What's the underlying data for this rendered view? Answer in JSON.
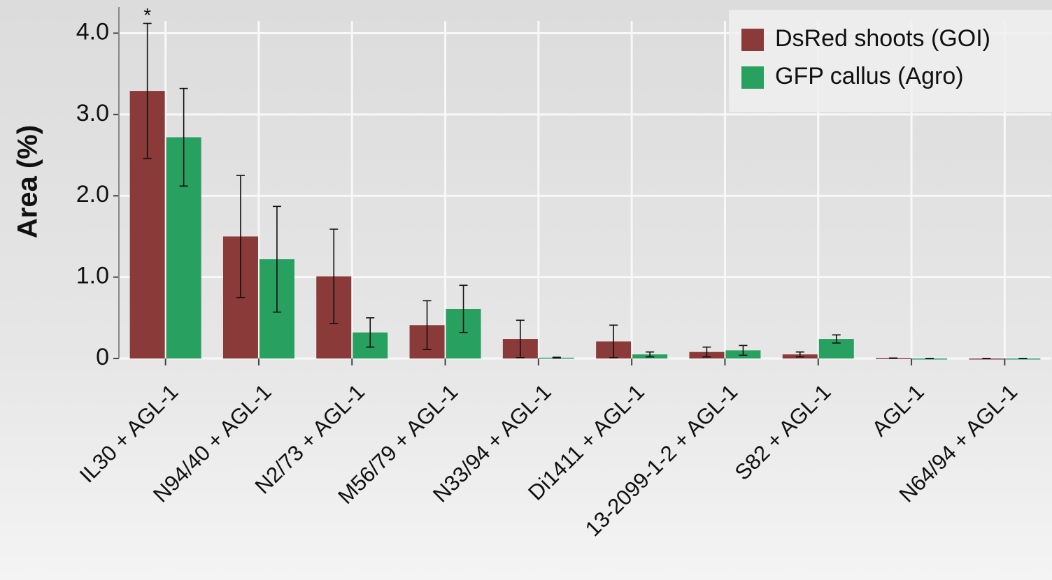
{
  "chart_data": {
    "type": "bar",
    "y_label": "Area (%)",
    "annotation": "*",
    "categories": [
      "IL30 + AGL-1",
      "N94/40 + AGL-1",
      "N2/73 + AGL-1",
      "M56/79 + AGL-1",
      "N33/94 + AGL-1",
      "Di1411 + AGL-1",
      "13-2099-1-2 + AGL-1",
      "S82 + AGL-1",
      "AGL-1",
      "N64/94 + AGL-1"
    ],
    "series": [
      {
        "name": "DsRed shoots (GOI)",
        "color": "#8b3a3a",
        "values": [
          3.29,
          1.5,
          1.01,
          0.41,
          0.24,
          0.21,
          0.08,
          0.05,
          0.005,
          0
        ],
        "errors": [
          0.83,
          0.75,
          0.58,
          0.3,
          0.23,
          0.2,
          0.06,
          0.03,
          0,
          0
        ]
      },
      {
        "name": "GFP callus (Agro)",
        "color": "#27a060",
        "values": [
          2.72,
          1.22,
          0.32,
          0.61,
          0.01,
          0.05,
          0.1,
          0.24,
          0,
          0
        ],
        "errors": [
          0.6,
          0.65,
          0.18,
          0.29,
          0.005,
          0.03,
          0.06,
          0.05,
          0,
          0
        ]
      }
    ],
    "ylim": [
      0,
      4.15
    ],
    "yticks": [
      0,
      {
        "value": 1,
        "label": "1.0"
      },
      {
        "value": 2,
        "label": "2.0"
      },
      {
        "value": 3,
        "label": "3.0"
      },
      {
        "value": 4,
        "label": "4.0"
      }
    ],
    "grid": true,
    "legend": "upper right"
  }
}
